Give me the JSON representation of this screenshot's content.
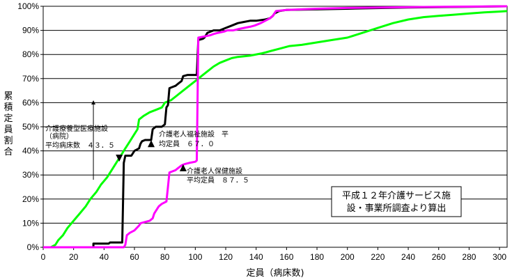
{
  "chart_data": {
    "type": "line",
    "xlabel": "定員（病床数)",
    "ylabel": "累積定員割合",
    "xlim": [
      0,
      305
    ],
    "ylim": [
      0,
      100
    ],
    "x_ticks": [
      "0",
      "20",
      "40",
      "60",
      "80",
      "100",
      "120",
      "140",
      "160",
      "180",
      "200",
      "220",
      "240",
      "260",
      "280",
      "300"
    ],
    "y_ticks": [
      "0%",
      "10%",
      "20%",
      "30%",
      "40%",
      "50%",
      "60%",
      "70%",
      "80%",
      "90%",
      "100%"
    ],
    "grid": "horizontal",
    "series": [
      {
        "name": "介護老人福祉施設",
        "color": "#000000",
        "points": [
          [
            33,
            0
          ],
          [
            33,
            1.5
          ],
          [
            43,
            1.5
          ],
          [
            44,
            2
          ],
          [
            52,
            2
          ],
          [
            53,
            35
          ],
          [
            54,
            38
          ],
          [
            56,
            38
          ],
          [
            58,
            38
          ],
          [
            60,
            40
          ],
          [
            63,
            41
          ],
          [
            64,
            43
          ],
          [
            65,
            44
          ],
          [
            67,
            44.5
          ],
          [
            71,
            44.5
          ],
          [
            72,
            49
          ],
          [
            74,
            50
          ],
          [
            78,
            50
          ],
          [
            80,
            51
          ],
          [
            81,
            58
          ],
          [
            82,
            59
          ],
          [
            83,
            66
          ],
          [
            85,
            66.5
          ],
          [
            87,
            67
          ],
          [
            89,
            68
          ],
          [
            91,
            69
          ],
          [
            92,
            71
          ],
          [
            95,
            71.5
          ],
          [
            101,
            71.5
          ],
          [
            102,
            86
          ],
          [
            105,
            86.5
          ],
          [
            106,
            87
          ],
          [
            108,
            89
          ],
          [
            112,
            90
          ],
          [
            116,
            90
          ],
          [
            120,
            91
          ],
          [
            124,
            92
          ],
          [
            128,
            93
          ],
          [
            132,
            93.5
          ],
          [
            136,
            94
          ],
          [
            140,
            94
          ],
          [
            146,
            94.5
          ],
          [
            149,
            95
          ],
          [
            151,
            96
          ],
          [
            152,
            97
          ],
          [
            155,
            98
          ],
          [
            160,
            98.5
          ],
          [
            200,
            99
          ],
          [
            240,
            99.5
          ],
          [
            280,
            99.8
          ],
          [
            305,
            100
          ]
        ]
      },
      {
        "name": "介護老人保健施設",
        "color": "#ff00ff",
        "points": [
          [
            0,
            0
          ],
          [
            53,
            0
          ],
          [
            54,
            1
          ],
          [
            55,
            5
          ],
          [
            57,
            6
          ],
          [
            60,
            7
          ],
          [
            63,
            9
          ],
          [
            64,
            10
          ],
          [
            67,
            10.5
          ],
          [
            70,
            11
          ],
          [
            71,
            11.5
          ],
          [
            72,
            12
          ],
          [
            73,
            14
          ],
          [
            75,
            16
          ],
          [
            76,
            17
          ],
          [
            78,
            18
          ],
          [
            81,
            19
          ],
          [
            82,
            25
          ],
          [
            83,
            31
          ],
          [
            85,
            31.5
          ],
          [
            87,
            32
          ],
          [
            89,
            33
          ],
          [
            91,
            34
          ],
          [
            93,
            34.5
          ],
          [
            96,
            35
          ],
          [
            100,
            35.5
          ],
          [
            101,
            36
          ],
          [
            102,
            87
          ],
          [
            106,
            87.5
          ],
          [
            110,
            88
          ],
          [
            112,
            88.5
          ],
          [
            115,
            89
          ],
          [
            119,
            89.5
          ],
          [
            121,
            90
          ],
          [
            125,
            90
          ],
          [
            128,
            90.5
          ],
          [
            132,
            91
          ],
          [
            136,
            91.5
          ],
          [
            139,
            92
          ],
          [
            143,
            93
          ],
          [
            146,
            94
          ],
          [
            149,
            95
          ],
          [
            151,
            96
          ],
          [
            153,
            98
          ],
          [
            160,
            98.5
          ],
          [
            180,
            99
          ],
          [
            200,
            99.3
          ],
          [
            250,
            99.7
          ],
          [
            305,
            100
          ]
        ]
      },
      {
        "name": "介護療養型医療施設（病院）",
        "color": "#00ff00",
        "points": [
          [
            5,
            0
          ],
          [
            8,
            1
          ],
          [
            10,
            3
          ],
          [
            13,
            5
          ],
          [
            16,
            8
          ],
          [
            20,
            11
          ],
          [
            24,
            14
          ],
          [
            28,
            17
          ],
          [
            31,
            20
          ],
          [
            35,
            23
          ],
          [
            38,
            26
          ],
          [
            42,
            29
          ],
          [
            45,
            32
          ],
          [
            48,
            35
          ],
          [
            51,
            38
          ],
          [
            54,
            41
          ],
          [
            57,
            44
          ],
          [
            60,
            47
          ],
          [
            62,
            49
          ],
          [
            63,
            53
          ],
          [
            66,
            54.5
          ],
          [
            70,
            56
          ],
          [
            74,
            57
          ],
          [
            78,
            58
          ],
          [
            80,
            60
          ],
          [
            84,
            61
          ],
          [
            88,
            63
          ],
          [
            92,
            65
          ],
          [
            96,
            67
          ],
          [
            100,
            69
          ],
          [
            104,
            71
          ],
          [
            108,
            73
          ],
          [
            112,
            75
          ],
          [
            116,
            76.5
          ],
          [
            120,
            77.5
          ],
          [
            124,
            78.5
          ],
          [
            128,
            79
          ],
          [
            136,
            79.5
          ],
          [
            144,
            80.5
          ],
          [
            150,
            81.5
          ],
          [
            156,
            82.5
          ],
          [
            162,
            83.5
          ],
          [
            170,
            84
          ],
          [
            180,
            85
          ],
          [
            190,
            86
          ],
          [
            200,
            87
          ],
          [
            210,
            89
          ],
          [
            220,
            91
          ],
          [
            230,
            93
          ],
          [
            240,
            94.5
          ],
          [
            250,
            95.5
          ],
          [
            260,
            96
          ],
          [
            270,
            96.5
          ],
          [
            280,
            97
          ],
          [
            290,
            97.5
          ],
          [
            300,
            97.8
          ],
          [
            305,
            98
          ]
        ]
      }
    ],
    "annotations": {
      "ryoyo_line1": "介護療養型医療施設",
      "ryoyo_line2": "（病院）",
      "ryoyo_line3": "平均病床数　４３．５",
      "fukushi_line1": "介護老人福祉施設　平",
      "fukushi_line2": "均定員　６７．０",
      "hoken_line1": "介護老人保健施設",
      "hoken_line2": "平均定員　８７．５",
      "source_line1": "平成１２年介護サービス施",
      "source_line2": "設・事業所調査より算出"
    },
    "markers": [
      {
        "type": "triangle-down",
        "x": 50,
        "y": 37
      },
      {
        "type": "triangle-up",
        "x": 71,
        "y": 43
      },
      {
        "type": "triangle-up",
        "x": 92,
        "y": 33
      }
    ],
    "arrow": {
      "x": 33,
      "y_from": 28,
      "y_to": 61
    }
  }
}
